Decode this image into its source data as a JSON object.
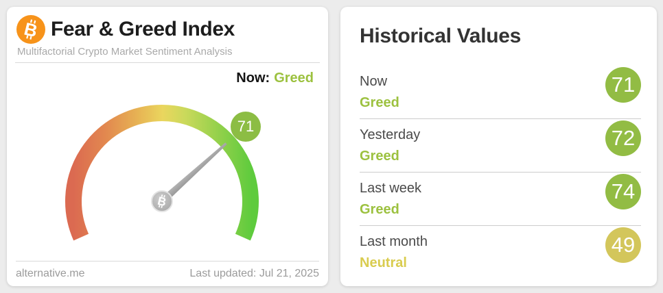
{
  "colors": {
    "background": "#ececec",
    "bitcoin_orange": "#f7931a",
    "greed_text": "#9cc13f",
    "greed_badge": "#92bc44",
    "neutral_text": "#d9cc4f",
    "neutral_badge": "#d3c65b",
    "gauge_badge_green": "#8cbd44",
    "needle_gray": "#a7a7a7"
  },
  "icons": {
    "bitcoin_glyph": "B"
  },
  "gauge_card": {
    "title": "Fear & Greed Index",
    "subtitle": "Multifactorial Crypto Market Sentiment Analysis",
    "now_label": "Now:",
    "now_value": "Greed",
    "badge_value": "71",
    "footer": {
      "source": "alternative.me",
      "last_updated": "Last updated: Jul 21, 2025"
    }
  },
  "historical_card": {
    "title": "Historical Values",
    "rows": [
      {
        "label": "Now",
        "sentiment": "Greed",
        "value": "71",
        "text_color": "#9cc13f",
        "badge_color": "#92bc44"
      },
      {
        "label": "Yesterday",
        "sentiment": "Greed",
        "value": "72",
        "text_color": "#9cc13f",
        "badge_color": "#92bc44"
      },
      {
        "label": "Last week",
        "sentiment": "Greed",
        "value": "74",
        "text_color": "#9cc13f",
        "badge_color": "#92bc44"
      },
      {
        "label": "Last month",
        "sentiment": "Neutral",
        "value": "49",
        "text_color": "#d9cc4f",
        "badge_color": "#d3c65b"
      }
    ]
  },
  "chart_data": {
    "type": "gauge",
    "title": "Fear & Greed Index",
    "value": 71,
    "min": 0,
    "max": 100,
    "classification": "Greed",
    "gauge_start_deg": 204,
    "gauge_sweep_deg": 228,
    "scale_colors": [
      "#db6a51",
      "#e2884f",
      "#e7b354",
      "#ead65e",
      "#c9d95b",
      "#97d14c",
      "#5ecb3d"
    ],
    "historical": [
      {
        "period": "Now",
        "value": 71,
        "classification": "Greed"
      },
      {
        "period": "Yesterday",
        "value": 72,
        "classification": "Greed"
      },
      {
        "period": "Last week",
        "value": 74,
        "classification": "Greed"
      },
      {
        "period": "Last month",
        "value": 49,
        "classification": "Neutral"
      }
    ]
  }
}
